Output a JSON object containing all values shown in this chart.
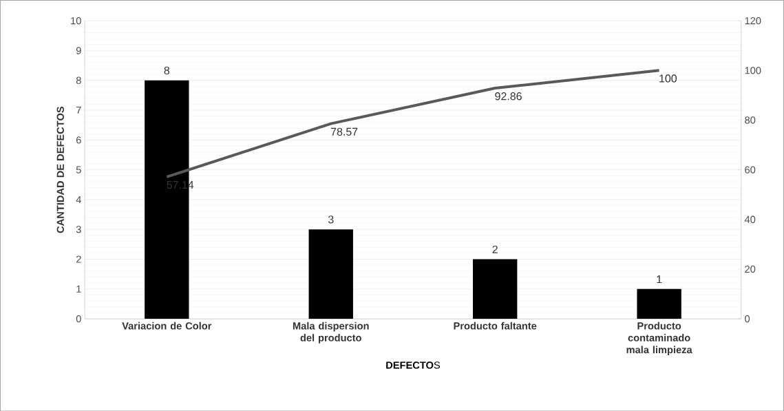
{
  "chart_data": {
    "type": "bar",
    "xlabel": "**DEFECTO**S",
    "ylabel": "CANTIDAD DE DEFECTOS",
    "categories": [
      "Variacion de Color",
      "Mala dispersion del producto",
      "Producto faltante",
      "Producto contaminado mala limpieza"
    ],
    "series": [
      {
        "color": "#000000",
        "values": [
          8,
          3,
          2,
          1
        ]
      },
      {
        "type": "line",
        "axis": "y2",
        "color": "#595959",
        "values": [
          57.14,
          78.57,
          92.86,
          100
        ]
      }
    ],
    "ylim": [
      0,
      10
    ],
    "yticks": [
      0,
      1,
      2,
      3,
      4,
      5,
      6,
      7,
      8,
      9,
      10
    ],
    "y2lim": [
      0,
      120
    ],
    "y2ticks": [
      0,
      20,
      40,
      60,
      80,
      100,
      120
    ],
    "grid": "y",
    "data_labels": true,
    "marker": "none",
    "line_style": "solid"
  }
}
